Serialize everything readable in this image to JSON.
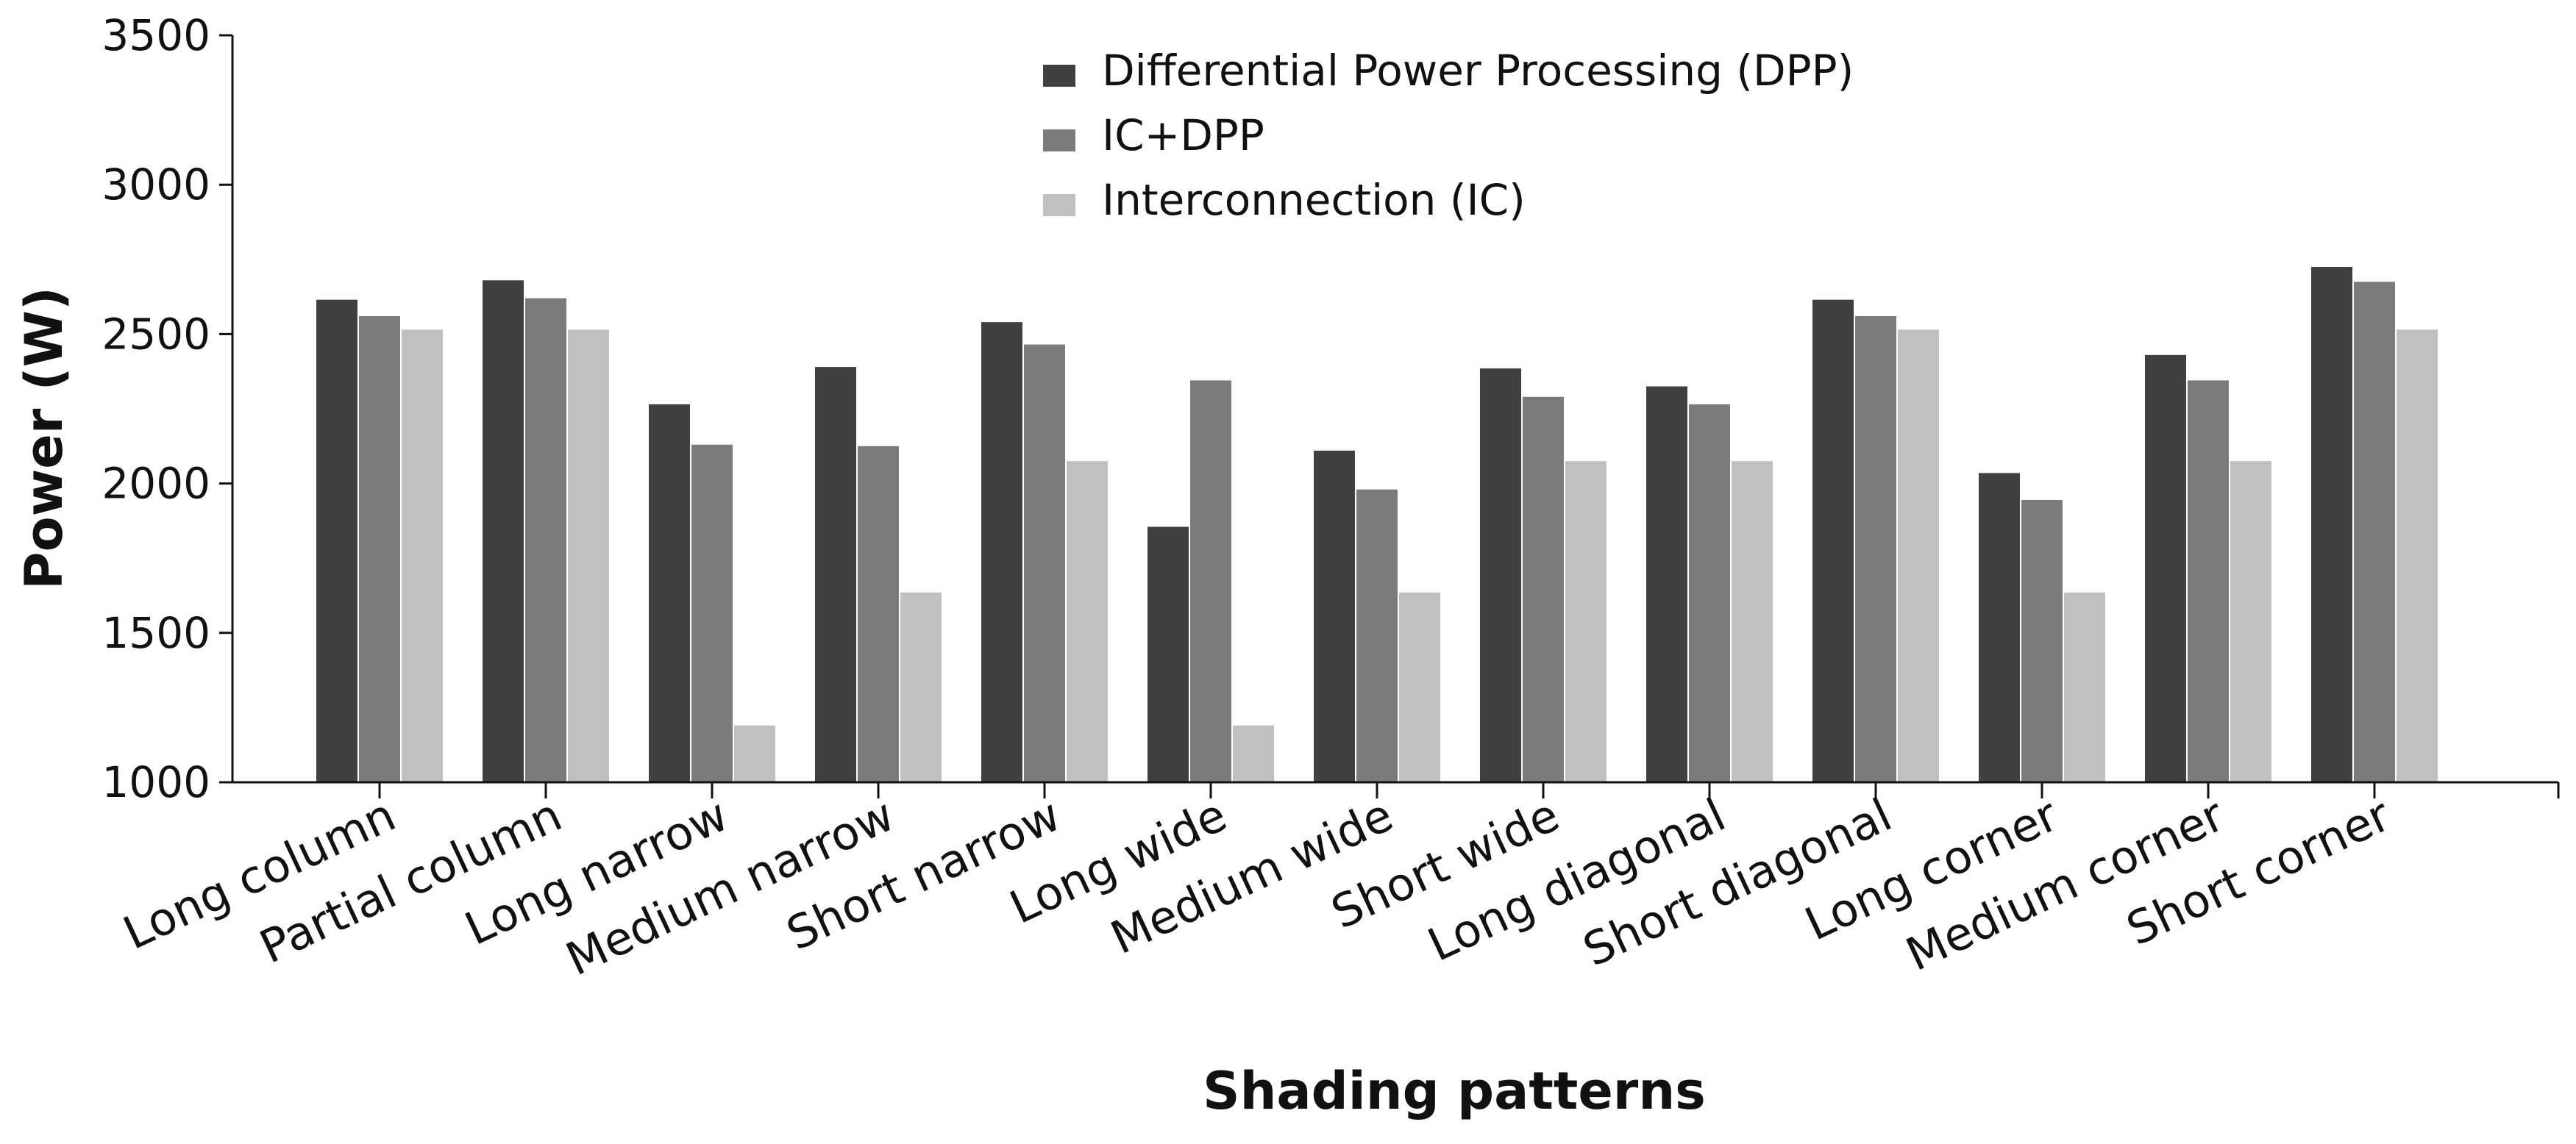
{
  "chart_data": {
    "type": "bar",
    "title": "",
    "xlabel": "Shading patterns",
    "ylabel": "Power (W)",
    "ylim": [
      1000,
      3500
    ],
    "yticks": [
      1000,
      1500,
      2000,
      2500,
      3000,
      3500
    ],
    "grid": false,
    "legend_position": "top-center",
    "categories": [
      "Long column",
      "Partial column",
      "Long narrow",
      "Medium narrow",
      "Short narrow",
      "Long wide",
      "Medium wide",
      "Short wide",
      "Long diagonal",
      "Short diagonal",
      "Long corner",
      "Medium corner",
      "Short corner"
    ],
    "series": [
      {
        "name": "Differential Power Processing (DPP)",
        "color": "#404040",
        "values": [
          2615,
          2680,
          2265,
          2390,
          2540,
          1855,
          2110,
          2385,
          2325,
          2615,
          2035,
          2430,
          2725
        ]
      },
      {
        "name": "IC+DPP",
        "color": "#7b7b7b",
        "values": [
          2560,
          2620,
          2130,
          2125,
          2465,
          2345,
          1980,
          2290,
          2265,
          2560,
          1945,
          2345,
          2675
        ]
      },
      {
        "name": "Interconnection (IC)",
        "color": "#c0c0c0",
        "values": [
          2515,
          2515,
          1190,
          1635,
          2075,
          1190,
          1635,
          2075,
          2075,
          2515,
          1635,
          2075,
          2515
        ]
      }
    ]
  }
}
